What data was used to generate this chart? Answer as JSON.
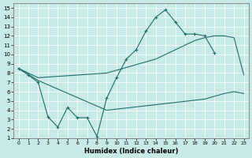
{
  "xlabel": "Humidex (Indice chaleur)",
  "bg_color": "#c8eae6",
  "line_color": "#1e6e6e",
  "xlim": [
    -0.5,
    23.5
  ],
  "ylim": [
    1,
    15.5
  ],
  "yticks": [
    1,
    2,
    3,
    4,
    5,
    6,
    7,
    8,
    9,
    10,
    11,
    12,
    13,
    14,
    15
  ],
  "xticks": [
    0,
    1,
    2,
    3,
    4,
    5,
    6,
    7,
    8,
    9,
    10,
    11,
    12,
    13,
    14,
    15,
    16,
    17,
    18,
    19,
    20,
    21,
    22,
    23
  ],
  "line_main_x": [
    0,
    1,
    2,
    3,
    4,
    5,
    6,
    7,
    8,
    9,
    10,
    11,
    12,
    13,
    14,
    15,
    16,
    17,
    18,
    19,
    20
  ],
  "line_main_y": [
    8.5,
    7.8,
    7.0,
    3.3,
    2.2,
    4.3,
    3.2,
    3.2,
    1.2,
    5.3,
    7.5,
    9.5,
    10.5,
    12.5,
    14.0,
    14.8,
    13.5,
    12.2,
    12.2,
    12.0,
    10.2
  ],
  "line_upper_x": [
    0,
    2,
    9,
    14,
    15,
    16,
    17,
    18,
    19,
    20,
    21,
    22,
    23
  ],
  "line_upper_y": [
    8.5,
    7.5,
    8.0,
    9.5,
    10.0,
    10.5,
    11.0,
    11.5,
    11.8,
    12.0,
    12.0,
    11.8,
    7.8
  ],
  "line_lower_x": [
    0,
    2,
    9,
    19,
    20,
    21,
    22,
    23
  ],
  "line_lower_y": [
    8.5,
    7.2,
    4.0,
    5.2,
    5.5,
    5.8,
    6.0,
    5.8
  ]
}
